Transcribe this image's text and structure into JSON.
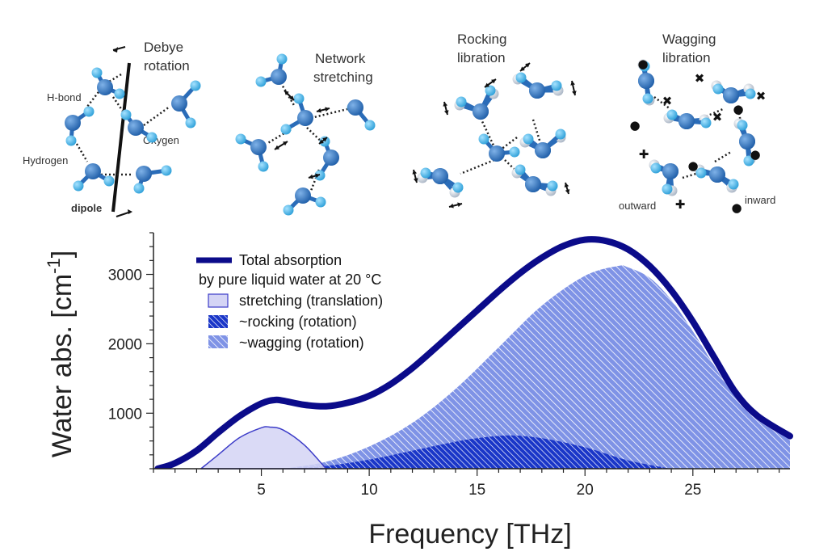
{
  "panels": [
    {
      "title_lines": [
        "Debye",
        "rotation"
      ],
      "labels": [
        "H-bond",
        "Oxygen",
        "Hydrogen",
        "dipole"
      ]
    },
    {
      "title_lines": [
        "Network",
        "stretching"
      ],
      "labels": []
    },
    {
      "title_lines": [
        "Rocking",
        "libration"
      ],
      "labels": []
    },
    {
      "title_lines": [
        "Wagging",
        "libration"
      ],
      "labels": [
        "outward",
        "inward"
      ]
    }
  ],
  "colors": {
    "total": "#0b0b8a",
    "stretch_fill": "#d4d4f5",
    "stretch_line": "#3c3cc8",
    "rocking": "#1a36c8",
    "wagging": "#7f93e6",
    "molecule_oxygen": "#2a6cb8",
    "molecule_hydrogen": "#4fb4e8"
  },
  "chart_data": {
    "type": "area",
    "title": "",
    "xlabel": "Frequency [THz]",
    "ylabel": "Water abs. [cm",
    "ylabel_sup": "-1",
    "ylabel_close": "]",
    "xlim": [
      0,
      29.5
    ],
    "ylim": [
      200,
      3600
    ],
    "xticks": [
      5,
      10,
      15,
      20,
      25
    ],
    "xtick_labels": [
      "5",
      "10",
      "15",
      "20",
      "25"
    ],
    "yticks": [
      1000,
      2000,
      3000
    ],
    "ytick_labels": [
      "1000",
      "2000",
      "3000"
    ],
    "legend": {
      "position": "upper-left",
      "entries": [
        "Total absorption",
        "by pure liquid water at 20 °C",
        "stretching (translation)",
        "~rocking (rotation)",
        "~wagging (rotation)"
      ]
    },
    "series": [
      {
        "name": "Total absorption",
        "kind": "line",
        "x": [
          0.2,
          1,
          2,
          3,
          4,
          5,
          5.6,
          6,
          7,
          8,
          9,
          10,
          11,
          12,
          13,
          14,
          15,
          16,
          17,
          18,
          19,
          20,
          21,
          22,
          23,
          24,
          25,
          26,
          27,
          28,
          29.5
        ],
        "y": [
          200,
          280,
          460,
          720,
          960,
          1140,
          1190,
          1180,
          1120,
          1100,
          1150,
          1250,
          1420,
          1650,
          1920,
          2200,
          2480,
          2760,
          3020,
          3240,
          3410,
          3500,
          3480,
          3360,
          3120,
          2770,
          2320,
          1800,
          1290,
          960,
          670
        ]
      },
      {
        "name": "stretching (translation)",
        "kind": "area",
        "x": [
          2.2,
          3,
          4,
          5,
          5.4,
          6,
          7,
          8
        ],
        "y": [
          200,
          400,
          650,
          790,
          800,
          760,
          540,
          200
        ]
      },
      {
        "name": "~rocking (rotation)",
        "kind": "area",
        "x": [
          6,
          8,
          10,
          12,
          14,
          15,
          16.5,
          18,
          20,
          22,
          24
        ],
        "y": [
          200,
          240,
          330,
          460,
          590,
          640,
          680,
          640,
          510,
          320,
          200
        ]
      },
      {
        "name": "~wagging (rotation)",
        "kind": "area",
        "x": [
          6,
          8,
          10,
          12,
          14,
          16,
          18,
          20,
          21.5,
          22,
          23,
          24,
          25,
          26,
          27,
          28,
          29.5
        ],
        "y": [
          200,
          300,
          520,
          860,
          1350,
          1950,
          2550,
          2980,
          3120,
          3100,
          2950,
          2630,
          2180,
          1680,
          1220,
          900,
          620
        ]
      }
    ]
  }
}
